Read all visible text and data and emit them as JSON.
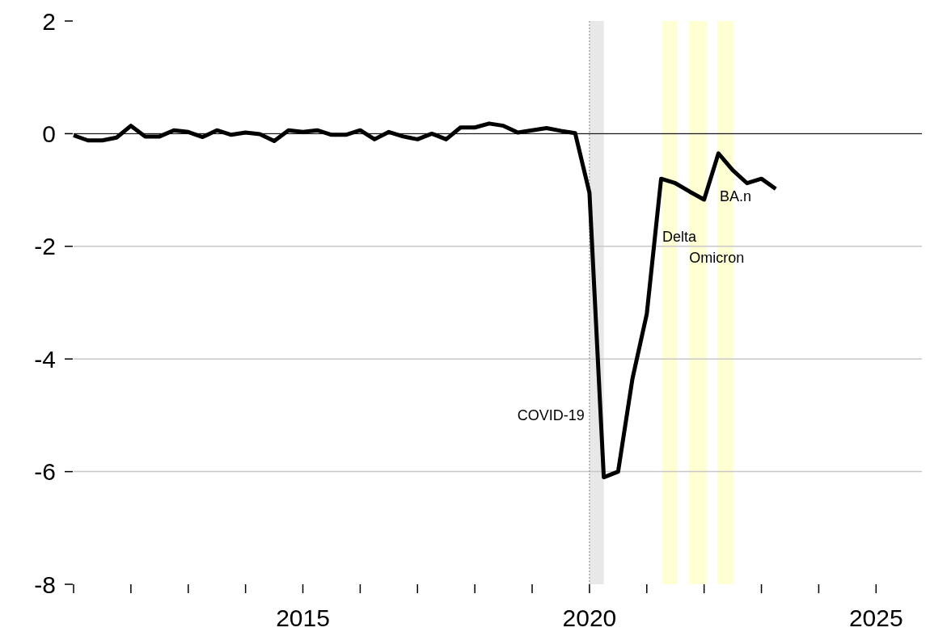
{
  "chart_data": {
    "type": "line",
    "x": [
      2011,
      2011.25,
      2011.5,
      2011.75,
      2012,
      2012.25,
      2012.5,
      2012.75,
      2013,
      2013.25,
      2013.5,
      2013.75,
      2014,
      2014.25,
      2014.5,
      2014.75,
      2015,
      2015.25,
      2015.5,
      2015.75,
      2016,
      2016.25,
      2016.5,
      2016.75,
      2017,
      2017.25,
      2017.5,
      2017.75,
      2018,
      2018.25,
      2018.5,
      2018.75,
      2019,
      2019.25,
      2019.5,
      2019.75,
      2020,
      2020.25,
      2020.5,
      2020.75,
      2021,
      2021.25,
      2021.5,
      2021.75,
      2022,
      2022.25,
      2022.5,
      2022.75,
      2023,
      2023.25
    ],
    "series": [
      {
        "color": "#000000",
        "values": [
          -0.03,
          -0.12,
          -0.12,
          -0.07,
          0.14,
          -0.05,
          -0.05,
          0.06,
          0.03,
          -0.06,
          0.06,
          -0.02,
          0.02,
          -0.01,
          -0.13,
          0.06,
          0.03,
          0.06,
          -0.02,
          -0.02,
          0.06,
          -0.1,
          0.03,
          -0.05,
          -0.1,
          0,
          -0.1,
          0.11,
          0.11,
          0.18,
          0.14,
          0.02,
          0.06,
          0.1,
          0.05,
          0.01,
          -1.05,
          -6.1,
          -6.0,
          -4.35,
          -3.2,
          -0.8,
          -0.88,
          -1.03,
          -1.17,
          -0.35,
          -0.65,
          -0.88,
          -0.8,
          -0.98
        ]
      }
    ],
    "xlim": [
      2011,
      2025.8
    ],
    "xticks": [
      {
        "value": 2011,
        "label": null
      },
      {
        "value": 2012,
        "label": null
      },
      {
        "value": 2013,
        "label": null
      },
      {
        "value": 2014,
        "label": null
      },
      2015,
      {
        "value": 2016,
        "label": null
      },
      {
        "value": 2017,
        "label": null
      },
      {
        "value": 2018,
        "label": null
      },
      {
        "value": 2019,
        "label": null
      },
      2020,
      {
        "value": 2021,
        "label": null
      },
      {
        "value": 2022,
        "label": null
      },
      {
        "value": 2023,
        "label": null
      },
      {
        "value": 2024,
        "label": null
      },
      2025
    ],
    "ylim": [
      -8,
      2
    ],
    "yticks": [
      -8,
      -6,
      -4,
      -2,
      0,
      2
    ],
    "grid": "y",
    "line_style": "solid",
    "ref_lines": [
      {
        "axis": "y",
        "value": 0,
        "color": "#000000",
        "line_style": "solid"
      },
      {
        "axis": "x",
        "value": 2020,
        "color": "#888888",
        "line_style": "dotted"
      }
    ],
    "bands": [
      {
        "axis": "x",
        "from": 2020,
        "to": 2020.25,
        "label": "COVID-19",
        "color": "#e8e8e8"
      },
      {
        "axis": "x",
        "from": 2021.27,
        "to": 2021.54,
        "label": "Delta",
        "color": "#ffffd4"
      },
      {
        "axis": "x",
        "from": 2021.74,
        "to": 2022.05,
        "label": "Omicron",
        "color": "#ffffd4"
      },
      {
        "axis": "x",
        "from": 2022.23,
        "to": 2022.51,
        "label": "BA.n",
        "color": "#ffffd4"
      }
    ]
  }
}
